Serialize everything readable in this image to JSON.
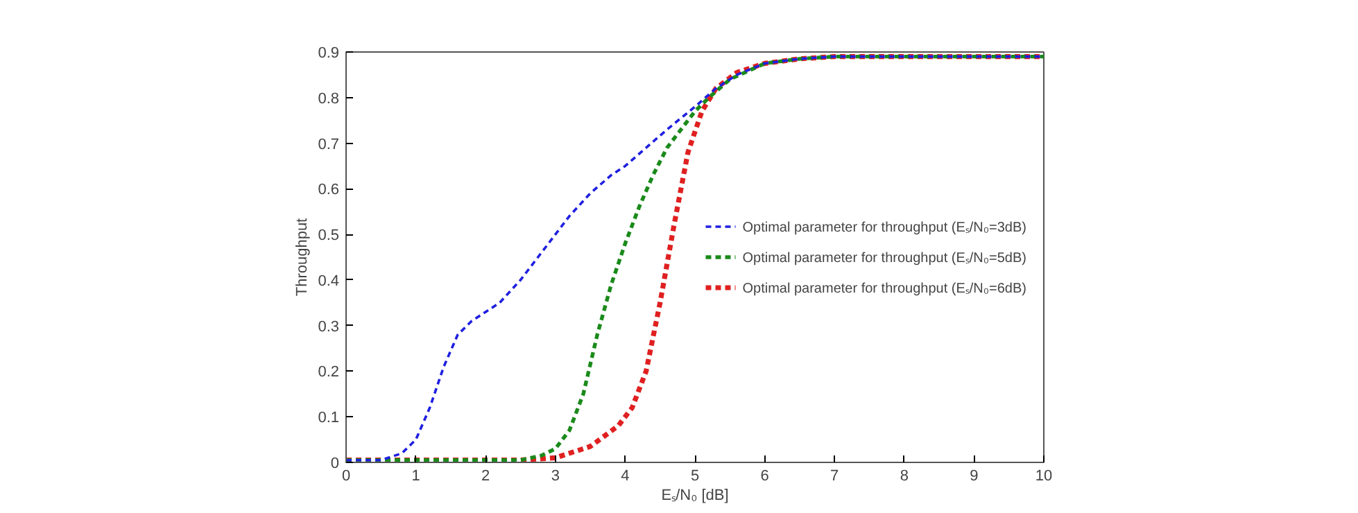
{
  "chart_data": {
    "type": "line",
    "xlabel": "Eₛ/N₀ [dB]",
    "ylabel": "Throughput",
    "xlim": [
      0,
      10
    ],
    "xticks": [
      0,
      1,
      2,
      3,
      4,
      5,
      6,
      7,
      8,
      9,
      10
    ],
    "ylim": [
      0,
      0.9
    ],
    "yticks": [
      0,
      0.1,
      0.2,
      0.3,
      0.4,
      0.5,
      0.6,
      0.7,
      0.8,
      0.9
    ],
    "grid": false,
    "legend": "center right",
    "line_style": "dashed",
    "marker": "none",
    "series": [
      {
        "name": "Optimal parameter for throughput (Eₛ/N₀=3dB)",
        "color": "#1f1fe0",
        "x": [
          0,
          0.5,
          0.8,
          1,
          1.2,
          1.4,
          1.6,
          1.8,
          2,
          2.2,
          2.5,
          2.8,
          3,
          3.2,
          3.5,
          3.8,
          4,
          4.3,
          4.6,
          5,
          5.3,
          5.6,
          6,
          6.5,
          7,
          10
        ],
        "values": [
          0.005,
          0.005,
          0.02,
          0.05,
          0.12,
          0.21,
          0.28,
          0.31,
          0.33,
          0.35,
          0.4,
          0.46,
          0.5,
          0.54,
          0.59,
          0.63,
          0.65,
          0.69,
          0.73,
          0.78,
          0.82,
          0.85,
          0.875,
          0.885,
          0.89,
          0.89
        ]
      },
      {
        "name": "Optimal parameter for throughput (Eₛ/N₀=5dB)",
        "color": "#1a8a1a",
        "x": [
          0,
          2.5,
          2.8,
          3,
          3.2,
          3.4,
          3.6,
          3.8,
          4,
          4.2,
          4.4,
          4.6,
          4.8,
          5,
          5.2,
          5.5,
          6,
          6.5,
          7,
          10
        ],
        "values": [
          0.005,
          0.005,
          0.015,
          0.03,
          0.07,
          0.15,
          0.28,
          0.39,
          0.48,
          0.56,
          0.63,
          0.69,
          0.73,
          0.77,
          0.8,
          0.84,
          0.875,
          0.885,
          0.89,
          0.89
        ]
      },
      {
        "name": "Optimal parameter for throughput (Eₛ/N₀=6dB)",
        "color": "#e02020",
        "x": [
          0,
          2.5,
          3,
          3.5,
          3.9,
          4.1,
          4.3,
          4.5,
          4.7,
          4.9,
          5.1,
          5.3,
          5.6,
          6,
          6.5,
          7,
          10
        ],
        "values": [
          0.005,
          0.005,
          0.01,
          0.035,
          0.08,
          0.12,
          0.2,
          0.35,
          0.52,
          0.68,
          0.77,
          0.82,
          0.855,
          0.875,
          0.885,
          0.89,
          0.89
        ]
      }
    ]
  }
}
